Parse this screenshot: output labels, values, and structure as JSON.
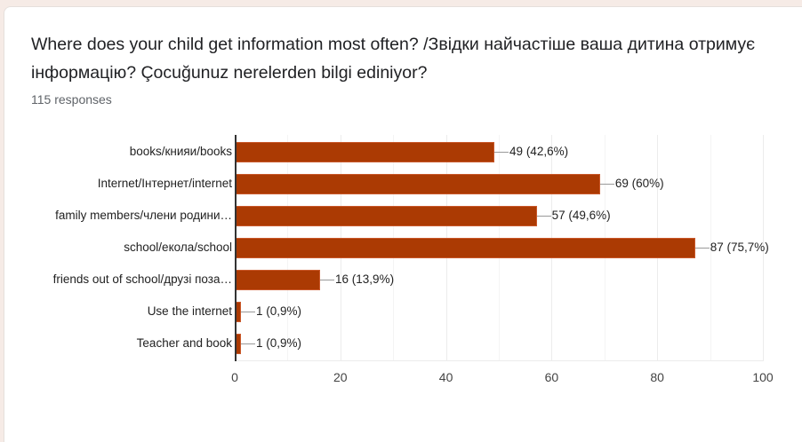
{
  "question": {
    "title": "Where does your child get information most often? /Звідки найчастіше ваша дитина отримує інформацію? Çocuğunuz nerelerden bilgi ediniyor?",
    "responses_label": "115 responses"
  },
  "colors": {
    "bar": "#ab3a03",
    "background": "#f6ebe6",
    "card": "#ffffff"
  },
  "chart_data": {
    "type": "bar",
    "orientation": "horizontal",
    "title": "Where does your child get information most often? /Звідки найчастіше ваша дитина отримує інформацію? Çocuğunuz nerelerden bilgi ediniyor?",
    "xlabel": "",
    "ylabel": "",
    "xlim": [
      0,
      100
    ],
    "x_ticks": [
      "0",
      "20",
      "40",
      "60",
      "80",
      "100"
    ],
    "grid": true,
    "legend": "none",
    "total_responses": 115,
    "categories": [
      "books/книяи/books",
      "Internet/Інтернет/internet",
      "family members/члени родини…",
      "school/екола/school",
      "friends out of school/друзі поза…",
      "Use the internet",
      "Teacher and book"
    ],
    "values": [
      49,
      69,
      57,
      87,
      16,
      1,
      1
    ],
    "percentages": [
      "42,6%",
      "60%",
      "49,6%",
      "75,7%",
      "13,9%",
      "0,9%",
      "0,9%"
    ],
    "value_labels": [
      "49 (42,6%)",
      "69 (60%)",
      "57 (49,6%)",
      "87 (75,7%)",
      "16 (13,9%)",
      "1 (0,9%)",
      "1 (0,9%)"
    ]
  }
}
